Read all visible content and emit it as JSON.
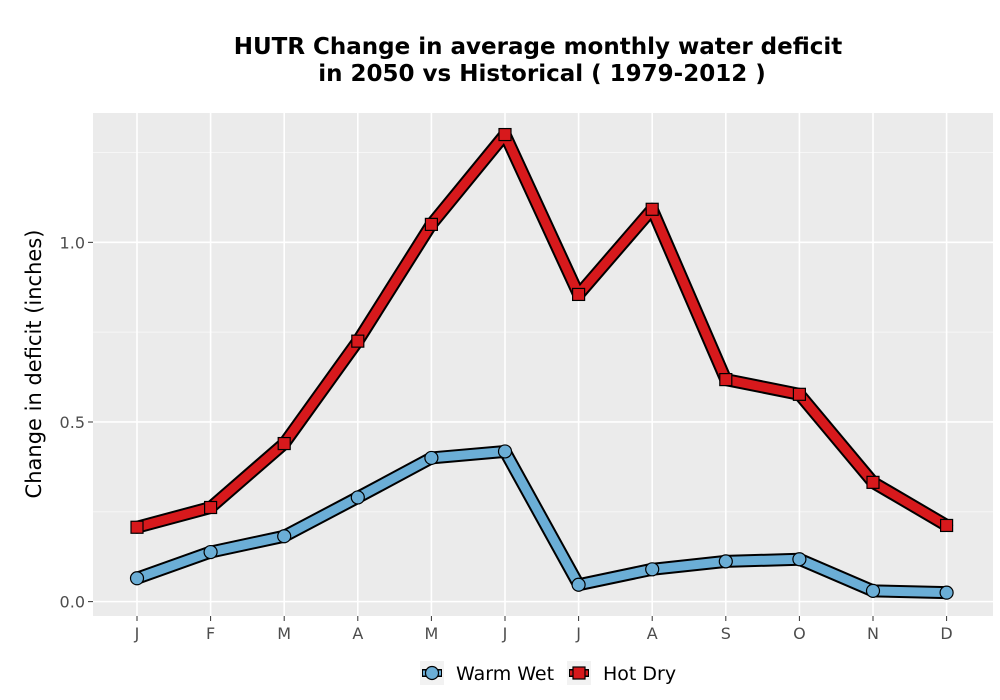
{
  "chart_data": {
    "type": "line",
    "title_line1": "HUTR  Change in average monthly water deficit",
    "title_line2": "in 2050 vs Historical ( 1979-2012 )",
    "xlabel": "",
    "ylabel": "Change in deficit (inches)",
    "categories": [
      "J",
      "F",
      "M",
      "A",
      "M",
      "J",
      "J",
      "A",
      "S",
      "O",
      "N",
      "D"
    ],
    "yticks": [
      0.0,
      0.5,
      1.0
    ],
    "ytick_labels": [
      "0.0",
      "0.5",
      "1.0"
    ],
    "ylim": [
      -0.04,
      1.36
    ],
    "grid": true,
    "legend_position": "bottom",
    "series": [
      {
        "name": "Warm Wet",
        "color": "#6baed6",
        "marker": "circle",
        "values": [
          0.065,
          0.138,
          0.182,
          0.29,
          0.4,
          0.418,
          0.047,
          0.09,
          0.112,
          0.118,
          0.03,
          0.025
        ]
      },
      {
        "name": "Hot Dry",
        "color": "#d7191c",
        "marker": "square",
        "values": [
          0.207,
          0.262,
          0.44,
          0.725,
          1.05,
          1.3,
          0.855,
          1.092,
          0.618,
          0.577,
          0.332,
          0.212
        ]
      }
    ]
  }
}
